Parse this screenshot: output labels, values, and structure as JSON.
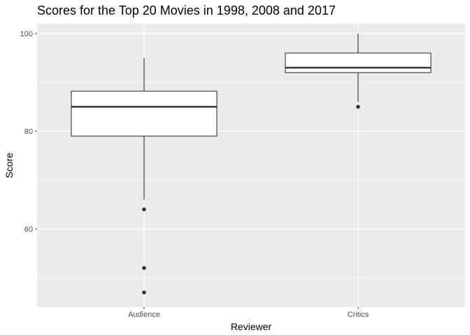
{
  "chart_data": {
    "type": "boxplot",
    "title": "Scores for the Top 20 Movies in 1998, 2008 and 2017",
    "xlabel": "Reviewer",
    "ylabel": "Score",
    "categories": [
      "Audience",
      "Critics"
    ],
    "ylim": [
      44,
      102
    ],
    "yticks": [
      60,
      80,
      100
    ],
    "grid": true,
    "boxes": [
      {
        "category": "Audience",
        "whisker_low": 66,
        "q1": 79,
        "median": 85,
        "q3": 88.2,
        "whisker_high": 95,
        "outliers": [
          64,
          52,
          47
        ]
      },
      {
        "category": "Critics",
        "whisker_low": 86,
        "q1": 92,
        "median": 93,
        "q3": 96,
        "whisker_high": 100,
        "outliers": [
          85
        ]
      }
    ]
  },
  "colors": {
    "panel_background": "#ebebeb",
    "grid_major": "#ffffff",
    "box_fill": "#ffffff",
    "box_stroke": "#333333",
    "outlier": "#333333"
  }
}
